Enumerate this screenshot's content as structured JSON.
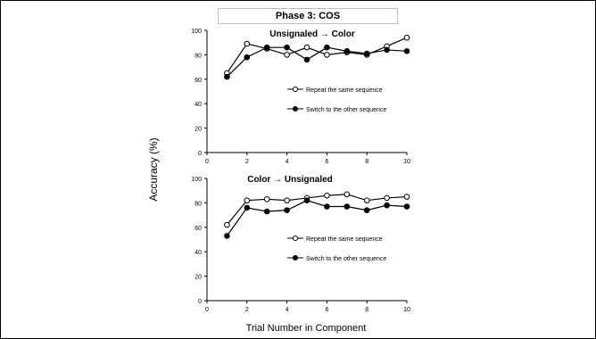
{
  "figure": {
    "title": "Phase 3: COS",
    "ylabel": "Accuracy (%)",
    "xlabel": "Trial Number in Component"
  },
  "chart_data": [
    {
      "type": "line",
      "title": "Unsignaled → Color",
      "x": [
        1,
        2,
        3,
        4,
        5,
        6,
        7,
        8,
        9,
        10
      ],
      "xticks": [
        0,
        2,
        4,
        6,
        8,
        10
      ],
      "yticks": [
        0,
        20,
        40,
        60,
        80,
        100
      ],
      "xlim": [
        0,
        10
      ],
      "ylim": [
        0,
        100
      ],
      "legend_position": "center-right",
      "series": [
        {
          "name": "Repeat the same sequence",
          "marker": "open-circle",
          "values": [
            65,
            89,
            85,
            80,
            86,
            80,
            82,
            80,
            87,
            94
          ]
        },
        {
          "name": "Switch to the other sequence",
          "marker": "filled-circle",
          "values": [
            62,
            78,
            86,
            86,
            76,
            86,
            83,
            81,
            84,
            83
          ]
        }
      ]
    },
    {
      "type": "line",
      "title": "Color → Unsignaled",
      "x": [
        1,
        2,
        3,
        4,
        5,
        6,
        7,
        8,
        9,
        10
      ],
      "xticks": [
        0,
        2,
        4,
        6,
        8,
        10
      ],
      "yticks": [
        0,
        20,
        40,
        60,
        80,
        100
      ],
      "xlim": [
        0,
        10
      ],
      "ylim": [
        0,
        100
      ],
      "legend_position": "center-right",
      "series": [
        {
          "name": "Repeat the same sequence",
          "marker": "open-circle",
          "values": [
            62,
            82,
            83,
            82,
            84,
            86,
            87,
            82,
            84,
            85
          ]
        },
        {
          "name": "Switch to the other sequence",
          "marker": "filled-circle",
          "values": [
            53,
            76,
            73,
            74,
            82,
            77,
            77,
            74,
            78,
            77
          ]
        }
      ]
    }
  ]
}
